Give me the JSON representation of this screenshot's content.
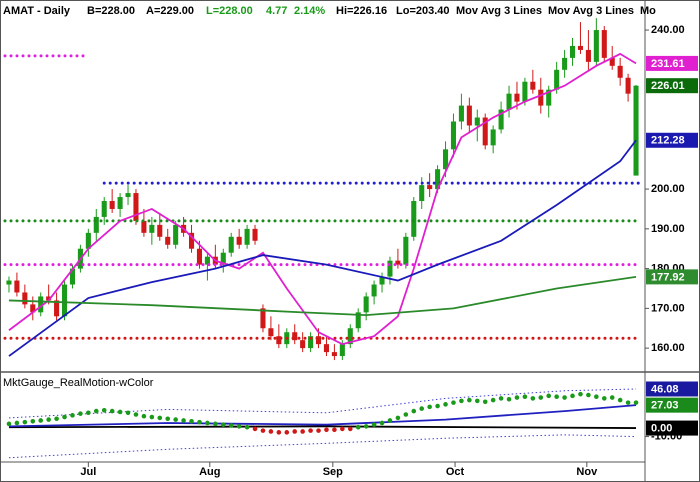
{
  "chart_data": [
    {
      "type": "candlestick",
      "title_parts": [
        {
          "text": "AMAT - Daily",
          "color": "#000000"
        },
        {
          "text": "B=228.00",
          "color": "#000000"
        },
        {
          "text": "A=229.00",
          "color": "#000000"
        },
        {
          "text": "L=228.00",
          "color": "#1a9a1a"
        },
        {
          "text": "4.77",
          "color": "#1a9a1a"
        },
        {
          "text": "2.14%",
          "color": "#1a9a1a"
        },
        {
          "text": "Hi=226.16",
          "color": "#000000"
        },
        {
          "text": "Lo=203.40",
          "color": "#000000"
        },
        {
          "text": "Mov Avg 3 Lines",
          "color": "#000000"
        },
        {
          "text": "Mov Avg 3 Lines",
          "color": "#000000"
        },
        {
          "text": "Mo",
          "color": "#000000"
        }
      ],
      "xlim": [
        -0.5,
        79.5
      ],
      "ylim": [
        154.5,
        246.3
      ],
      "yticks": [
        {
          "value": 160,
          "label": "160.00"
        },
        {
          "value": 170,
          "label": "170.00"
        },
        {
          "value": 180,
          "label": "180.00"
        },
        {
          "value": 190,
          "label": "190.00"
        },
        {
          "value": 200,
          "label": "200.00"
        },
        {
          "value": 240,
          "label": "240.00"
        }
      ],
      "up_color": "#1a9a1a",
      "down_color": "#d01818",
      "ohlc": [
        [
          176,
          178,
          174,
          177
        ],
        [
          177,
          179,
          173,
          174
        ],
        [
          174,
          176,
          170,
          171
        ],
        [
          171,
          173,
          167,
          169
        ],
        [
          169,
          174,
          168,
          173
        ],
        [
          173,
          176,
          171,
          172
        ],
        [
          172,
          174,
          167,
          168
        ],
        [
          168,
          177,
          167,
          176
        ],
        [
          176,
          181,
          175,
          180
        ],
        [
          180,
          186,
          179,
          185
        ],
        [
          185,
          190,
          183,
          189
        ],
        [
          189,
          195,
          187,
          193
        ],
        [
          193,
          198,
          191,
          197
        ],
        [
          197,
          200,
          194,
          195
        ],
        [
          195,
          199,
          193,
          198
        ],
        [
          198,
          201,
          196,
          199
        ],
        [
          199,
          200,
          191,
          192
        ],
        [
          192,
          195,
          188,
          189
        ],
        [
          189,
          193,
          186,
          191
        ],
        [
          191,
          194,
          187,
          188
        ],
        [
          188,
          190,
          185,
          186
        ],
        [
          186,
          192,
          185,
          191
        ],
        [
          191,
          193,
          188,
          189
        ],
        [
          189,
          191,
          184,
          185
        ],
        [
          185,
          187,
          180,
          181
        ],
        [
          181,
          184,
          177,
          183
        ],
        [
          183,
          186,
          180,
          181
        ],
        [
          181,
          185,
          179,
          184
        ],
        [
          184,
          189,
          183,
          188
        ],
        [
          188,
          190,
          185,
          186
        ],
        [
          186,
          191,
          185,
          190
        ],
        [
          190,
          191,
          186,
          187
        ],
        [
          170,
          171,
          164,
          165
        ],
        [
          165,
          168,
          162,
          163
        ],
        [
          163,
          166,
          160,
          161
        ],
        [
          161,
          165,
          160,
          164
        ],
        [
          164,
          166,
          161,
          162
        ],
        [
          162,
          164,
          159,
          160
        ],
        [
          160,
          164,
          159,
          163
        ],
        [
          163,
          165,
          160,
          161
        ],
        [
          161,
          163,
          158,
          159
        ],
        [
          159,
          161,
          157,
          158
        ],
        [
          158,
          162,
          157,
          161
        ],
        [
          161,
          166,
          160,
          165
        ],
        [
          165,
          170,
          164,
          169
        ],
        [
          169,
          174,
          167,
          173
        ],
        [
          173,
          177,
          171,
          176
        ],
        [
          176,
          179,
          174,
          178
        ],
        [
          178,
          183,
          176,
          182
        ],
        [
          182,
          185,
          180,
          181
        ],
        [
          181,
          189,
          180,
          188
        ],
        [
          188,
          198,
          187,
          197
        ],
        [
          197,
          203,
          195,
          201
        ],
        [
          201,
          204,
          198,
          200
        ],
        [
          200,
          206,
          199,
          205
        ],
        [
          205,
          212,
          203,
          210
        ],
        [
          210,
          219,
          208,
          217
        ],
        [
          217,
          224,
          215,
          221
        ],
        [
          221,
          223,
          214,
          216
        ],
        [
          216,
          220,
          212,
          218
        ],
        [
          218,
          219,
          210,
          211
        ],
        [
          211,
          216,
          209,
          215
        ],
        [
          215,
          222,
          214,
          220
        ],
        [
          220,
          226,
          218,
          224
        ],
        [
          224,
          227,
          220,
          222
        ],
        [
          222,
          228,
          221,
          227
        ],
        [
          227,
          230,
          224,
          225
        ],
        [
          225,
          228,
          219,
          221
        ],
        [
          221,
          226,
          218,
          225
        ],
        [
          225,
          232,
          224,
          230
        ],
        [
          230,
          235,
          228,
          233
        ],
        [
          233,
          238,
          231,
          236
        ],
        [
          236,
          242,
          234,
          235
        ],
        [
          235,
          240,
          230,
          232
        ],
        [
          232,
          243,
          231,
          240
        ],
        [
          240,
          241,
          232,
          233
        ],
        [
          233,
          236,
          230,
          231
        ],
        [
          231,
          233,
          226,
          228
        ],
        [
          228,
          229,
          222,
          224
        ],
        [
          203.4,
          226.16,
          203.4,
          226.01
        ]
      ],
      "series": [
        {
          "color": "#e020d0",
          "x": [
            0,
            5,
            10,
            14,
            18,
            22,
            26,
            29,
            32,
            35,
            39,
            42,
            46,
            49,
            51,
            54,
            57,
            61,
            65,
            70,
            74,
            77,
            79
          ],
          "values": [
            164.5,
            172,
            185,
            192,
            195,
            190,
            182,
            180,
            184,
            175,
            164,
            161,
            163,
            168,
            180,
            200,
            213,
            218,
            222,
            226,
            231,
            234,
            231.61
          ]
        },
        {
          "color": "#1a1ab8",
          "x": [
            0,
            10,
            18,
            26,
            32,
            40,
            49,
            54,
            62,
            69,
            77,
            79
          ],
          "values": [
            158,
            172.6,
            176.6,
            180,
            183.4,
            181,
            177,
            181,
            187,
            196,
            207,
            212.28
          ]
        },
        {
          "color": "#2a8a2a",
          "x": [
            0,
            18,
            37,
            45,
            56,
            69,
            79
          ],
          "values": [
            172,
            170.8,
            169,
            168.3,
            170,
            175,
            177.92
          ]
        }
      ],
      "levels": [
        {
          "value": 233.5,
          "color": "#e020e0",
          "x": [
            -0.5,
            9.5
          ]
        },
        {
          "value": 201.5,
          "color": "#2020d0",
          "x": [
            12,
            79.5
          ]
        },
        {
          "value": 192,
          "color": "#1a8a1a",
          "x": [
            -0.5,
            79.5
          ]
        },
        {
          "value": 181,
          "color": "#e020e0",
          "x": [
            -0.5,
            79.5
          ]
        },
        {
          "value": 162.5,
          "color": "#d01818",
          "x": [
            -0.5,
            79.5
          ]
        }
      ],
      "price_tags": [
        {
          "value": 231.61,
          "color": "#e020d0"
        },
        {
          "value": 226.01,
          "color": "#0b6b0b"
        },
        {
          "value": 212.28,
          "color": "#1a1ab0"
        },
        {
          "value": 177.92,
          "color": "#2e8b2e"
        }
      ]
    },
    {
      "type": "indicator",
      "title": "MktGauge_RealMotion-wColor",
      "xlim": [
        -0.5,
        79.5
      ],
      "ylim": [
        -40,
        61.4
      ],
      "xticks": [
        {
          "value": 10,
          "label": "Jul"
        },
        {
          "value": 25.3,
          "label": "Aug"
        },
        {
          "value": 40.8,
          "label": "Sep"
        },
        {
          "value": 56.2,
          "label": "Oct"
        },
        {
          "value": 72.8,
          "label": "Nov"
        }
      ],
      "yticks": [
        {
          "value": -10,
          "label": "-10.00"
        }
      ],
      "positive_color": "#1a9a1a",
      "negative_color": "#d01818",
      "dots": [
        5,
        6,
        7,
        8,
        9,
        10,
        11,
        13,
        15,
        17,
        18,
        20,
        21,
        20,
        19,
        18,
        16,
        14,
        13,
        12,
        11,
        10,
        9,
        8,
        7,
        6,
        5,
        4,
        3,
        2,
        1,
        -1,
        -3,
        -4,
        -5,
        -5,
        -4,
        -4,
        -3,
        -3,
        -2,
        -2,
        -1,
        -1,
        1,
        2,
        4,
        6,
        9,
        12,
        16,
        20,
        23,
        25,
        26,
        28,
        30,
        32,
        33,
        32,
        31,
        33,
        35,
        34,
        36,
        37,
        35,
        36,
        38,
        37,
        36,
        38,
        40,
        39,
        37,
        35,
        36,
        33,
        30,
        30
      ],
      "series": [
        {
          "color": "#4040d0",
          "dashed": true,
          "x": [
            0,
            20,
            40,
            55,
            70,
            79
          ],
          "values": [
            12,
            22,
            18,
            35,
            44,
            46.08
          ]
        },
        {
          "color": "#4040d0",
          "dashed": true,
          "x": [
            0,
            20,
            40,
            55,
            70,
            79
          ],
          "values": [
            -35,
            -25,
            -18,
            -12,
            -8,
            -10
          ]
        },
        {
          "color": "#000000",
          "dashed": false,
          "x": [
            0,
            40,
            79
          ],
          "values": [
            1,
            2,
            0
          ]
        },
        {
          "color": "#2020c0",
          "dashed": false,
          "x": [
            0,
            20,
            40,
            55,
            70,
            79
          ],
          "values": [
            2,
            6,
            4,
            10,
            20,
            27.03
          ]
        }
      ],
      "price_tags": [
        {
          "value": 46.08,
          "color": "#1a1aa0"
        },
        {
          "value": 27.03,
          "color": "#1a8a1a"
        },
        {
          "value": 0,
          "label": "0.00",
          "color": "#000000"
        }
      ]
    }
  ]
}
